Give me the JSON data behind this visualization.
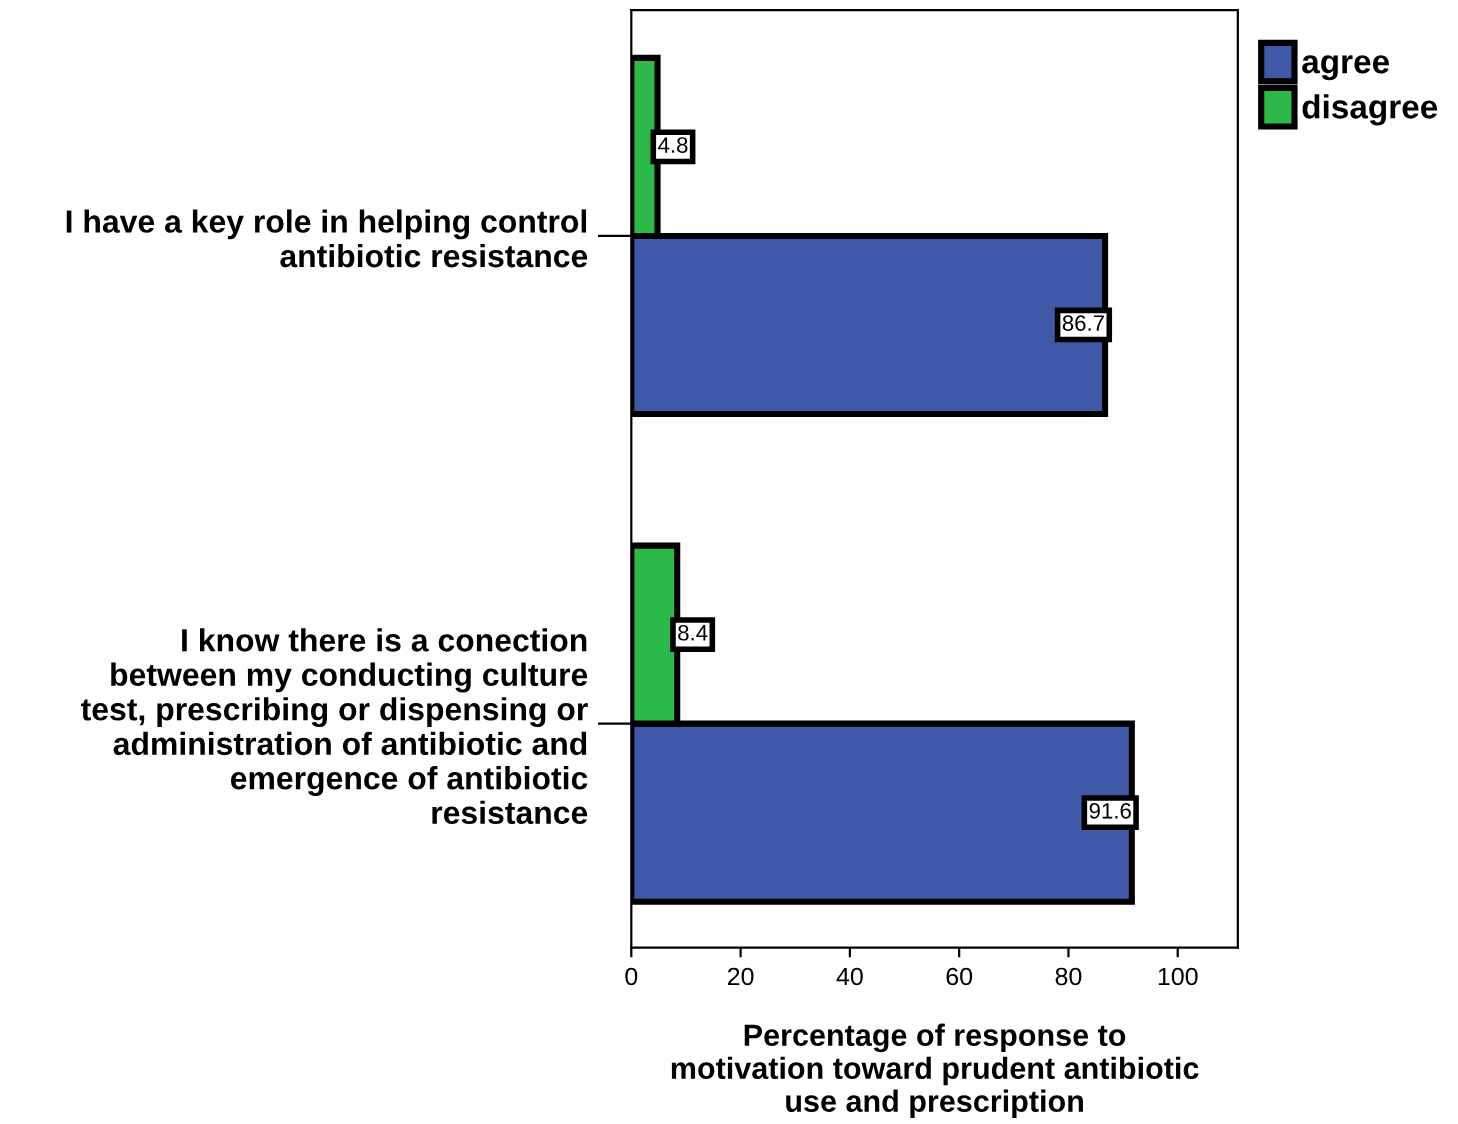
{
  "chart_data": {
    "type": "bar",
    "orientation": "horizontal",
    "xlabel": "Percentage of response to\nmotivation toward prudent antibiotic\nuse and prescription",
    "categories": [
      "I have a key role in helping control\nantibiotic resistance",
      "I know there is a conection\nbetween my conducting culture\ntest, prescribing or dispensing or\nadministration of antibiotic and\nemergence of antibiotic\nresistance"
    ],
    "series": [
      {
        "name": "agree",
        "color": "#3f58a8",
        "values": [
          86.7,
          91.6
        ]
      },
      {
        "name": "disagree",
        "color": "#2db84a",
        "values": [
          4.8,
          8.4
        ]
      }
    ],
    "xlim": [
      0,
      111
    ],
    "xticks": [
      0,
      20,
      40,
      60,
      80,
      100
    ],
    "data_labels": true,
    "legend": "top right",
    "grid": false
  }
}
